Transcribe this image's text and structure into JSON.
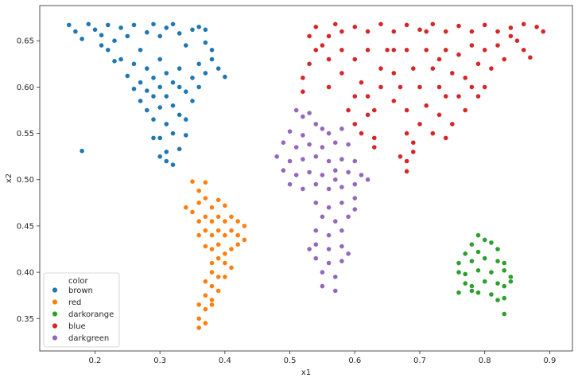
{
  "chart_data": {
    "type": "scatter",
    "xlabel": "x1",
    "ylabel": "x2",
    "xlim": [
      0.115,
      0.935
    ],
    "ylim": [
      0.315,
      0.688
    ],
    "xticks": [
      0.2,
      0.3,
      0.4,
      0.5,
      0.6,
      0.7,
      0.8,
      0.9
    ],
    "xtick_labels": [
      "0.2",
      "0.3",
      "0.4",
      "0.5",
      "0.6",
      "0.7",
      "0.8",
      "0.9"
    ],
    "yticks": [
      0.35,
      0.4,
      0.45,
      0.5,
      0.55,
      0.6,
      0.65
    ],
    "ytick_labels": [
      "0.35",
      "0.40",
      "0.45",
      "0.50",
      "0.55",
      "0.60",
      "0.65"
    ],
    "grid": false,
    "legend": {
      "title": "color",
      "placement": "lower-left",
      "entries": [
        "brown",
        "red",
        "darkorange",
        "blue",
        "darkgreen"
      ]
    },
    "series": [
      {
        "name": "brown",
        "color": "#1f77b4",
        "points": [
          [
            0.16,
            0.667
          ],
          [
            0.17,
            0.66
          ],
          [
            0.18,
            0.652
          ],
          [
            0.19,
            0.668
          ],
          [
            0.2,
            0.662
          ],
          [
            0.21,
            0.656
          ],
          [
            0.22,
            0.667
          ],
          [
            0.23,
            0.65
          ],
          [
            0.24,
            0.664
          ],
          [
            0.25,
            0.655
          ],
          [
            0.26,
            0.667
          ],
          [
            0.27,
            0.64
          ],
          [
            0.28,
            0.659
          ],
          [
            0.29,
            0.668
          ],
          [
            0.3,
            0.655
          ],
          [
            0.31,
            0.664
          ],
          [
            0.32,
            0.668
          ],
          [
            0.33,
            0.658
          ],
          [
            0.34,
            0.645
          ],
          [
            0.35,
            0.662
          ],
          [
            0.36,
            0.665
          ],
          [
            0.37,
            0.648
          ],
          [
            0.38,
            0.64
          ],
          [
            0.39,
            0.62
          ],
          [
            0.4,
            0.611
          ],
          [
            0.24,
            0.63
          ],
          [
            0.25,
            0.612
          ],
          [
            0.26,
            0.598
          ],
          [
            0.26,
            0.625
          ],
          [
            0.27,
            0.605
          ],
          [
            0.27,
            0.585
          ],
          [
            0.28,
            0.62
          ],
          [
            0.28,
            0.596
          ],
          [
            0.28,
            0.575
          ],
          [
            0.29,
            0.61
          ],
          [
            0.29,
            0.59
          ],
          [
            0.29,
            0.565
          ],
          [
            0.3,
            0.63
          ],
          [
            0.3,
            0.6
          ],
          [
            0.3,
            0.578
          ],
          [
            0.3,
            0.545
          ],
          [
            0.31,
            0.615
          ],
          [
            0.31,
            0.59
          ],
          [
            0.31,
            0.56
          ],
          [
            0.31,
            0.53
          ],
          [
            0.32,
            0.605
          ],
          [
            0.32,
            0.58
          ],
          [
            0.32,
            0.55
          ],
          [
            0.33,
            0.6
          ],
          [
            0.33,
            0.57
          ],
          [
            0.34,
            0.595
          ],
          [
            0.34,
            0.565
          ],
          [
            0.35,
            0.61
          ],
          [
            0.35,
            0.585
          ],
          [
            0.36,
            0.625
          ],
          [
            0.36,
            0.6
          ],
          [
            0.37,
            0.615
          ],
          [
            0.38,
            0.63
          ],
          [
            0.31,
            0.52
          ],
          [
            0.33,
            0.533
          ],
          [
            0.3,
            0.525
          ],
          [
            0.32,
            0.516
          ],
          [
            0.29,
            0.545
          ],
          [
            0.34,
            0.548
          ],
          [
            0.18,
            0.531
          ],
          [
            0.22,
            0.64
          ],
          [
            0.23,
            0.628
          ],
          [
            0.21,
            0.645
          ],
          [
            0.33,
            0.62
          ],
          [
            0.37,
            0.662
          ]
        ]
      },
      {
        "name": "red",
        "color": "#ff7f0e",
        "points": [
          [
            0.35,
            0.498
          ],
          [
            0.36,
            0.488
          ],
          [
            0.37,
            0.497
          ],
          [
            0.36,
            0.475
          ],
          [
            0.37,
            0.48
          ],
          [
            0.38,
            0.47
          ],
          [
            0.39,
            0.478
          ],
          [
            0.4,
            0.472
          ],
          [
            0.35,
            0.465
          ],
          [
            0.34,
            0.47
          ],
          [
            0.36,
            0.455
          ],
          [
            0.37,
            0.46
          ],
          [
            0.38,
            0.455
          ],
          [
            0.39,
            0.46
          ],
          [
            0.4,
            0.455
          ],
          [
            0.41,
            0.46
          ],
          [
            0.42,
            0.455
          ],
          [
            0.43,
            0.45
          ],
          [
            0.36,
            0.44
          ],
          [
            0.37,
            0.445
          ],
          [
            0.38,
            0.44
          ],
          [
            0.39,
            0.445
          ],
          [
            0.4,
            0.44
          ],
          [
            0.41,
            0.445
          ],
          [
            0.42,
            0.44
          ],
          [
            0.43,
            0.435
          ],
          [
            0.37,
            0.428
          ],
          [
            0.38,
            0.425
          ],
          [
            0.39,
            0.43
          ],
          [
            0.4,
            0.42
          ],
          [
            0.41,
            0.425
          ],
          [
            0.42,
            0.43
          ],
          [
            0.38,
            0.41
          ],
          [
            0.39,
            0.415
          ],
          [
            0.4,
            0.41
          ],
          [
            0.41,
            0.405
          ],
          [
            0.38,
            0.4
          ],
          [
            0.39,
            0.395
          ],
          [
            0.4,
            0.395
          ],
          [
            0.37,
            0.39
          ],
          [
            0.38,
            0.385
          ],
          [
            0.39,
            0.38
          ],
          [
            0.37,
            0.375
          ],
          [
            0.38,
            0.37
          ],
          [
            0.36,
            0.365
          ],
          [
            0.37,
            0.36
          ],
          [
            0.36,
            0.35
          ],
          [
            0.37,
            0.345
          ],
          [
            0.36,
            0.34
          ],
          [
            0.38,
            0.365
          ]
        ]
      },
      {
        "name": "darkorange",
        "color": "#2ca02c",
        "points": [
          [
            0.79,
            0.44
          ],
          [
            0.78,
            0.43
          ],
          [
            0.8,
            0.435
          ],
          [
            0.81,
            0.432
          ],
          [
            0.77,
            0.42
          ],
          [
            0.79,
            0.422
          ],
          [
            0.82,
            0.425
          ],
          [
            0.76,
            0.41
          ],
          [
            0.78,
            0.412
          ],
          [
            0.8,
            0.415
          ],
          [
            0.82,
            0.412
          ],
          [
            0.83,
            0.41
          ],
          [
            0.76,
            0.4
          ],
          [
            0.77,
            0.398
          ],
          [
            0.79,
            0.402
          ],
          [
            0.81,
            0.4
          ],
          [
            0.83,
            0.402
          ],
          [
            0.84,
            0.395
          ],
          [
            0.77,
            0.388
          ],
          [
            0.78,
            0.385
          ],
          [
            0.8,
            0.39
          ],
          [
            0.82,
            0.388
          ],
          [
            0.83,
            0.385
          ],
          [
            0.84,
            0.39
          ],
          [
            0.76,
            0.378
          ],
          [
            0.78,
            0.38
          ],
          [
            0.79,
            0.378
          ],
          [
            0.81,
            0.376
          ],
          [
            0.82,
            0.37
          ],
          [
            0.83,
            0.372
          ],
          [
            0.83,
            0.355
          ]
        ]
      },
      {
        "name": "blue",
        "color": "#d62728",
        "points": [
          [
            0.57,
            0.668
          ],
          [
            0.58,
            0.66
          ],
          [
            0.56,
            0.655
          ],
          [
            0.6,
            0.665
          ],
          [
            0.62,
            0.66
          ],
          [
            0.64,
            0.668
          ],
          [
            0.66,
            0.66
          ],
          [
            0.68,
            0.667
          ],
          [
            0.7,
            0.662
          ],
          [
            0.72,
            0.668
          ],
          [
            0.74,
            0.66
          ],
          [
            0.76,
            0.666
          ],
          [
            0.78,
            0.66
          ],
          [
            0.8,
            0.667
          ],
          [
            0.82,
            0.66
          ],
          [
            0.84,
            0.664
          ],
          [
            0.86,
            0.668
          ],
          [
            0.88,
            0.665
          ],
          [
            0.89,
            0.66
          ],
          [
            0.54,
            0.64
          ],
          [
            0.53,
            0.625
          ],
          [
            0.52,
            0.61
          ],
          [
            0.52,
            0.595
          ],
          [
            0.55,
            0.645
          ],
          [
            0.56,
            0.63
          ],
          [
            0.58,
            0.64
          ],
          [
            0.58,
            0.615
          ],
          [
            0.6,
            0.63
          ],
          [
            0.61,
            0.605
          ],
          [
            0.62,
            0.64
          ],
          [
            0.62,
            0.59
          ],
          [
            0.63,
            0.575
          ],
          [
            0.64,
            0.62
          ],
          [
            0.64,
            0.6
          ],
          [
            0.65,
            0.64
          ],
          [
            0.66,
            0.615
          ],
          [
            0.66,
            0.585
          ],
          [
            0.67,
            0.6
          ],
          [
            0.68,
            0.64
          ],
          [
            0.68,
            0.575
          ],
          [
            0.68,
            0.55
          ],
          [
            0.69,
            0.62
          ],
          [
            0.69,
            0.53
          ],
          [
            0.7,
            0.6
          ],
          [
            0.7,
            0.56
          ],
          [
            0.71,
            0.64
          ],
          [
            0.71,
            0.58
          ],
          [
            0.72,
            0.62
          ],
          [
            0.72,
            0.55
          ],
          [
            0.73,
            0.6
          ],
          [
            0.73,
            0.57
          ],
          [
            0.74,
            0.64
          ],
          [
            0.74,
            0.59
          ],
          [
            0.75,
            0.615
          ],
          [
            0.75,
            0.56
          ],
          [
            0.76,
            0.635
          ],
          [
            0.76,
            0.59
          ],
          [
            0.77,
            0.61
          ],
          [
            0.77,
            0.575
          ],
          [
            0.78,
            0.645
          ],
          [
            0.78,
            0.6
          ],
          [
            0.79,
            0.625
          ],
          [
            0.8,
            0.64
          ],
          [
            0.8,
            0.6
          ],
          [
            0.81,
            0.62
          ],
          [
            0.82,
            0.645
          ],
          [
            0.83,
            0.63
          ],
          [
            0.85,
            0.65
          ],
          [
            0.86,
            0.64
          ],
          [
            0.87,
            0.632
          ],
          [
            0.6,
            0.56
          ],
          [
            0.61,
            0.55
          ],
          [
            0.62,
            0.57
          ],
          [
            0.63,
            0.545
          ],
          [
            0.68,
            0.52
          ],
          [
            0.68,
            0.509
          ],
          [
            0.67,
            0.525
          ],
          [
            0.69,
            0.54
          ],
          [
            0.63,
            0.535
          ],
          [
            0.74,
            0.545
          ],
          [
            0.6,
            0.59
          ],
          [
            0.59,
            0.575
          ],
          [
            0.53,
            0.655
          ],
          [
            0.54,
            0.665
          ],
          [
            0.56,
            0.6
          ],
          [
            0.66,
            0.64
          ],
          [
            0.71,
            0.66
          ],
          [
            0.73,
            0.63
          ],
          [
            0.79,
            0.59
          ],
          [
            0.84,
            0.655
          ]
        ]
      },
      {
        "name": "darkgreen",
        "color": "#9467bd",
        "points": [
          [
            0.51,
            0.575
          ],
          [
            0.52,
            0.568
          ],
          [
            0.53,
            0.572
          ],
          [
            0.54,
            0.56
          ],
          [
            0.5,
            0.552
          ],
          [
            0.52,
            0.548
          ],
          [
            0.55,
            0.555
          ],
          [
            0.56,
            0.55
          ],
          [
            0.58,
            0.555
          ],
          [
            0.49,
            0.54
          ],
          [
            0.51,
            0.535
          ],
          [
            0.53,
            0.538
          ],
          [
            0.55,
            0.535
          ],
          [
            0.57,
            0.54
          ],
          [
            0.59,
            0.538
          ],
          [
            0.48,
            0.525
          ],
          [
            0.5,
            0.52
          ],
          [
            0.52,
            0.522
          ],
          [
            0.54,
            0.525
          ],
          [
            0.56,
            0.52
          ],
          [
            0.58,
            0.522
          ],
          [
            0.6,
            0.52
          ],
          [
            0.49,
            0.51
          ],
          [
            0.51,
            0.505
          ],
          [
            0.53,
            0.508
          ],
          [
            0.55,
            0.505
          ],
          [
            0.57,
            0.51
          ],
          [
            0.59,
            0.508
          ],
          [
            0.61,
            0.505
          ],
          [
            0.62,
            0.5
          ],
          [
            0.5,
            0.495
          ],
          [
            0.52,
            0.49
          ],
          [
            0.54,
            0.495
          ],
          [
            0.56,
            0.49
          ],
          [
            0.58,
            0.492
          ],
          [
            0.6,
            0.495
          ],
          [
            0.54,
            0.475
          ],
          [
            0.56,
            0.47
          ],
          [
            0.58,
            0.475
          ],
          [
            0.6,
            0.468
          ],
          [
            0.55,
            0.46
          ],
          [
            0.57,
            0.455
          ],
          [
            0.59,
            0.46
          ],
          [
            0.54,
            0.445
          ],
          [
            0.56,
            0.44
          ],
          [
            0.58,
            0.445
          ],
          [
            0.54,
            0.43
          ],
          [
            0.56,
            0.425
          ],
          [
            0.58,
            0.428
          ],
          [
            0.54,
            0.415
          ],
          [
            0.56,
            0.41
          ],
          [
            0.58,
            0.412
          ],
          [
            0.55,
            0.4
          ],
          [
            0.57,
            0.395
          ],
          [
            0.55,
            0.385
          ],
          [
            0.57,
            0.38
          ],
          [
            0.53,
            0.425
          ],
          [
            0.59,
            0.42
          ],
          [
            0.6,
            0.48
          ],
          [
            0.57,
            0.5
          ]
        ]
      }
    ]
  }
}
